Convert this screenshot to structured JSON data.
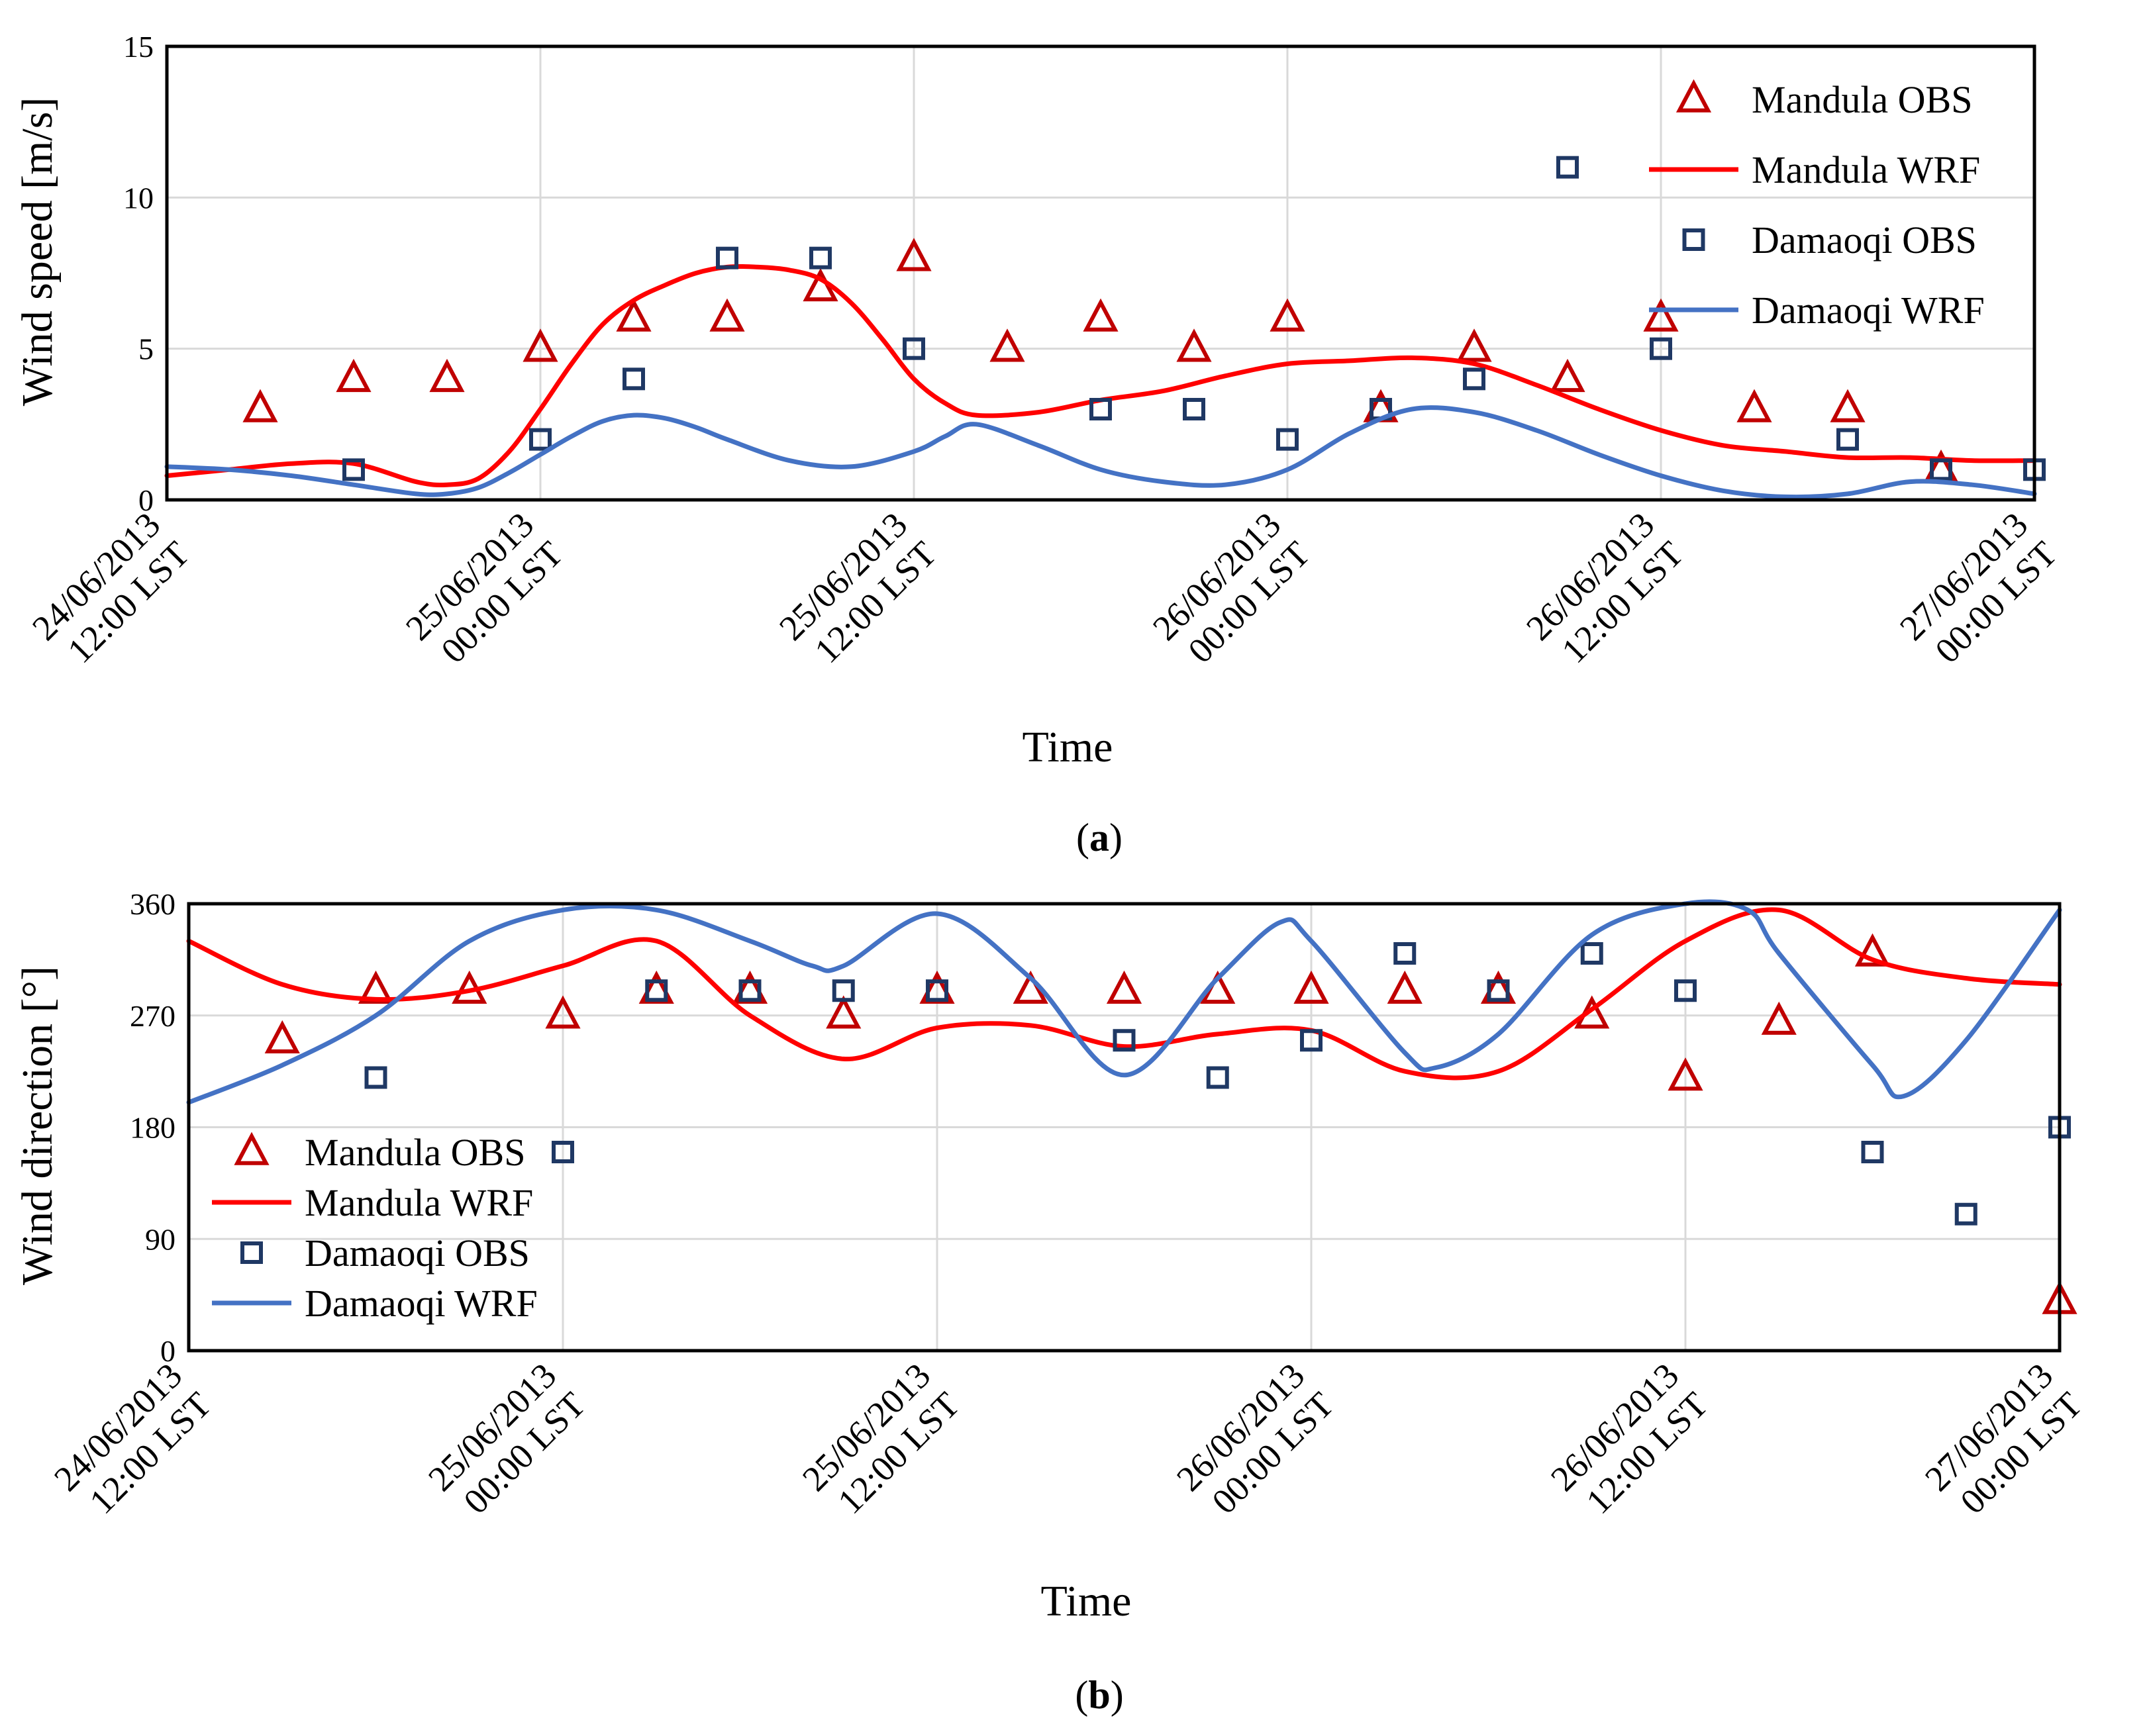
{
  "chart_data": [
    {
      "type": "line",
      "panel_label": "a",
      "xlabel": "Time",
      "ylabel": "Wind speed [m/s]",
      "ylim": [
        0,
        15
      ],
      "yticks": [
        "0",
        "5",
        "10",
        "15"
      ],
      "xlim": [
        0,
        60
      ],
      "xticks": [
        {
          "x": 0,
          "date": "24/06/2013",
          "time": "12:00 LST"
        },
        {
          "x": 12,
          "date": "25/06/2013",
          "time": "00:00 LST"
        },
        {
          "x": 24,
          "date": "25/06/2013",
          "time": "12:00 LST"
        },
        {
          "x": 36,
          "date": "26/06/2013",
          "time": "00:00 LST"
        },
        {
          "x": 48,
          "date": "26/06/2013",
          "time": "12:00 LST"
        },
        {
          "x": 60,
          "date": "27/06/2013",
          "time": "00:00 LST"
        }
      ],
      "grid": true,
      "legend_position": "top-right",
      "series": [
        {
          "name": "Mandula OBS",
          "kind": "markers",
          "marker": "triangle",
          "color": "#c00000",
          "x": [
            3,
            6,
            9,
            12,
            15,
            18,
            21,
            24,
            27,
            30,
            33,
            36,
            39,
            42,
            45,
            48,
            51,
            54,
            57
          ],
          "y": [
            3,
            4,
            4,
            5,
            6,
            6,
            7,
            8,
            5,
            6,
            5,
            6,
            3,
            5,
            4,
            6,
            3,
            3,
            1
          ]
        },
        {
          "name": "Mandula WRF",
          "kind": "line",
          "color": "#ff0000",
          "x": [
            0,
            2,
            4,
            6,
            8,
            9,
            10,
            11,
            12,
            13,
            14,
            15,
            16,
            17,
            18,
            19,
            20,
            21,
            22,
            23,
            24,
            25,
            26,
            28,
            30,
            32,
            34,
            36,
            38,
            40,
            42,
            44,
            46,
            48,
            50,
            52,
            54,
            56,
            58,
            60
          ],
          "y": [
            0.8,
            1.0,
            1.2,
            1.2,
            0.6,
            0.5,
            0.7,
            1.6,
            3.0,
            4.5,
            5.8,
            6.6,
            7.1,
            7.5,
            7.7,
            7.7,
            7.6,
            7.3,
            6.5,
            5.3,
            4.0,
            3.2,
            2.8,
            2.9,
            3.3,
            3.6,
            4.1,
            4.5,
            4.6,
            4.7,
            4.5,
            3.8,
            3.0,
            2.3,
            1.8,
            1.6,
            1.4,
            1.4,
            1.3,
            1.3
          ]
        },
        {
          "name": "Damaoqi OBS",
          "kind": "markers",
          "marker": "square",
          "color": "#1f3864",
          "x": [
            6,
            12,
            15,
            18,
            21,
            24,
            30,
            33,
            36,
            39,
            42,
            45,
            48,
            54,
            57,
            60
          ],
          "y": [
            1,
            2,
            4,
            8,
            8,
            5,
            3,
            3,
            2,
            3,
            4,
            11,
            5,
            2,
            1,
            1
          ]
        },
        {
          "name": "Damaoqi WRF",
          "kind": "line",
          "color": "#4472c4",
          "x": [
            0,
            2,
            4,
            6,
            8,
            9,
            10,
            11,
            12,
            13,
            14,
            15,
            16,
            17,
            18,
            20,
            22,
            24,
            25,
            26,
            28,
            30,
            32,
            34,
            36,
            38,
            40,
            42,
            44,
            46,
            48,
            50,
            52,
            54,
            56,
            58,
            60
          ],
          "y": [
            1.1,
            1.0,
            0.8,
            0.5,
            0.2,
            0.2,
            0.4,
            0.9,
            1.5,
            2.1,
            2.6,
            2.8,
            2.7,
            2.4,
            2.0,
            1.3,
            1.1,
            1.6,
            2.1,
            2.5,
            1.8,
            1.0,
            0.6,
            0.5,
            1.0,
            2.2,
            3.0,
            2.9,
            2.3,
            1.5,
            0.8,
            0.3,
            0.1,
            0.2,
            0.6,
            0.5,
            0.2
          ]
        }
      ]
    },
    {
      "type": "line",
      "panel_label": "b",
      "xlabel": "Time",
      "ylabel": "Wind direction [°]",
      "ylim": [
        0,
        360
      ],
      "yticks": [
        "0",
        "90",
        "180",
        "270",
        "360"
      ],
      "xlim": [
        0,
        60
      ],
      "xticks": [
        {
          "x": 0,
          "date": "24/06/2013",
          "time": "12:00 LST"
        },
        {
          "x": 12,
          "date": "25/06/2013",
          "time": "00:00 LST"
        },
        {
          "x": 24,
          "date": "25/06/2013",
          "time": "12:00 LST"
        },
        {
          "x": 36,
          "date": "26/06/2013",
          "time": "00:00 LST"
        },
        {
          "x": 48,
          "date": "26/06/2013",
          "time": "12:00 LST"
        },
        {
          "x": 60,
          "date": "27/06/2013",
          "time": "00:00 LST"
        }
      ],
      "grid": true,
      "legend_position": "bottom-left",
      "series": [
        {
          "name": "Mandula OBS",
          "kind": "markers",
          "marker": "triangle",
          "color": "#c00000",
          "x": [
            3,
            6,
            9,
            12,
            15,
            18,
            21,
            24,
            27,
            30,
            33,
            36,
            39,
            42,
            45,
            48,
            51,
            54,
            60
          ],
          "y": [
            250,
            290,
            290,
            270,
            290,
            290,
            270,
            290,
            290,
            290,
            290,
            290,
            290,
            290,
            270,
            220,
            265,
            320,
            40
          ]
        },
        {
          "name": "Mandula WRF",
          "kind": "line",
          "color": "#ff0000",
          "x": [
            0,
            3,
            6,
            9,
            12,
            15,
            18,
            21,
            24,
            27,
            30,
            33,
            36,
            39,
            42,
            45,
            48,
            51,
            54,
            57,
            60
          ],
          "y": [
            330,
            295,
            283,
            290,
            310,
            330,
            270,
            235,
            260,
            262,
            245,
            255,
            258,
            225,
            225,
            275,
            330,
            355,
            315,
            300,
            295
          ]
        },
        {
          "name": "Damaoqi OBS",
          "kind": "markers",
          "marker": "square",
          "color": "#1f3864",
          "x": [
            6,
            12,
            15,
            18,
            21,
            24,
            30,
            33,
            36,
            39,
            42,
            45,
            48,
            54,
            57,
            60
          ],
          "y": [
            220,
            160,
            290,
            290,
            290,
            290,
            250,
            220,
            250,
            320,
            290,
            320,
            290,
            160,
            110,
            180
          ]
        },
        {
          "name": "Damaoqi WRF",
          "kind": "line",
          "color": "#4472c4",
          "x": [
            0,
            3,
            6,
            9,
            12,
            15,
            18,
            20,
            21,
            24,
            27,
            30,
            33,
            35,
            36,
            39,
            40,
            42,
            45,
            48,
            50,
            51,
            54,
            55,
            57,
            60
          ],
          "y": [
            200,
            230,
            270,
            330,
            355,
            355,
            330,
            310,
            310,
            352,
            300,
            222,
            300,
            345,
            330,
            240,
            228,
            255,
            335,
            360,
            355,
            320,
            230,
            205,
            250,
            355
          ]
        }
      ]
    }
  ]
}
